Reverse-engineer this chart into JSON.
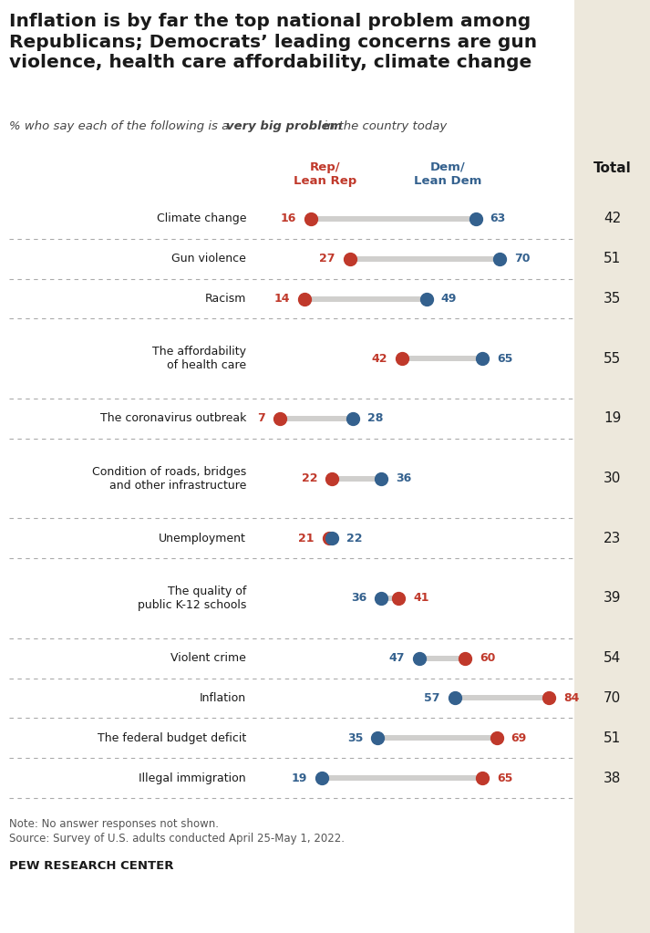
{
  "title": "Inflation is by far the top national problem among Republicans; Democrats’ leading concerns are gun violence, health care affordability, climate change",
  "categories": [
    "Climate change",
    "Gun violence",
    "Racism",
    "The affordability\nof health care",
    "The coronavirus outbreak",
    "Condition of roads, bridges\nand other infrastructure",
    "Unemployment",
    "The quality of\npublic K-12 schools",
    "Violent crime",
    "Inflation",
    "The federal budget deficit",
    "Illegal immigration"
  ],
  "rep_values": [
    16,
    27,
    14,
    42,
    7,
    22,
    21,
    41,
    60,
    84,
    69,
    65
  ],
  "dem_values": [
    63,
    70,
    49,
    65,
    28,
    36,
    22,
    36,
    47,
    57,
    35,
    19
  ],
  "total_values": [
    42,
    51,
    35,
    55,
    19,
    30,
    23,
    39,
    54,
    70,
    51,
    38
  ],
  "rep_color": "#C0392B",
  "dem_color": "#34618E",
  "bar_color": "#D0CFCD",
  "total_bg_color": "#EDE8DC",
  "bg_color": "#FFFFFF",
  "note_line1": "Note: No answer responses not shown.",
  "note_line2": "Source: Survey of U.S. adults conducted April 25-May 1, 2022.",
  "footer": "PEW RESEARCH CENTER",
  "x_max": 90,
  "row_heights_lines": [
    1,
    1,
    1,
    2,
    1,
    2,
    1,
    2,
    1,
    1,
    1,
    1
  ]
}
